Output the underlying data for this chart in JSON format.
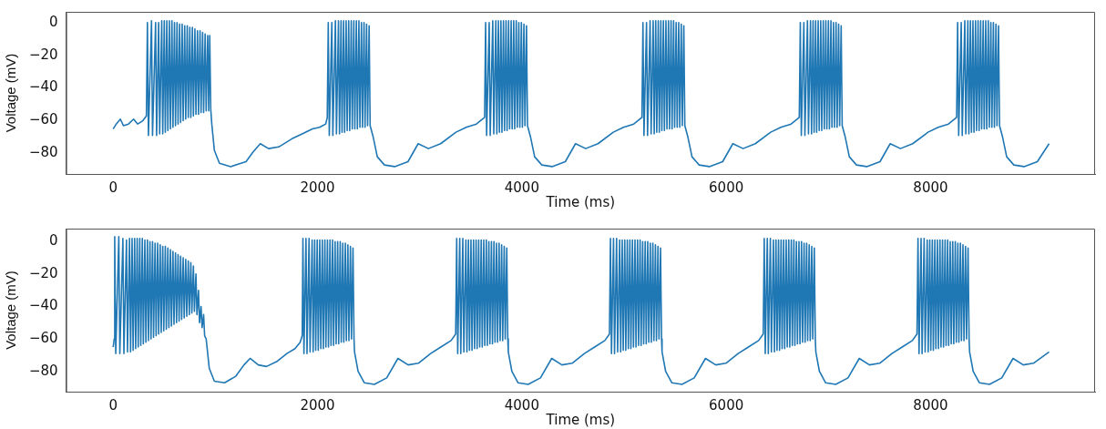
{
  "chart_data": [
    {
      "type": "line",
      "xlabel": "Time (ms)",
      "ylabel": "Voltage (mV)",
      "xlim": [
        -460,
        9610
      ],
      "xticks": [
        0,
        2000,
        4000,
        6000,
        8000
      ],
      "ylim": [
        -92.5,
        6.5
      ],
      "yticks": [
        -80,
        -60,
        -40,
        -20,
        0
      ],
      "grid": false,
      "series": [
        {
          "color": "#1f77b4",
          "x": [
            0,
            30,
            70,
            100,
            150,
            200,
            240,
            290,
            325,
            335,
            345,
            375,
            385,
            415,
            425,
            445,
            455,
            475,
            485,
            500,
            510,
            525,
            535,
            550,
            560,
            575,
            585,
            600,
            610,
            625,
            635,
            650,
            660,
            675,
            685,
            700,
            710,
            725,
            735,
            750,
            760,
            775,
            785,
            800,
            810,
            825,
            835,
            850,
            860,
            875,
            885,
            900,
            910,
            925,
            935,
            945,
            955,
            965,
            990,
            1040,
            1150,
            1300,
            1370,
            1440,
            1520,
            1620,
            1750,
            1850,
            1950,
            2020,
            2080,
            2095,
            2105,
            2115,
            2140,
            2150,
            2175,
            2185,
            2205,
            2215,
            2230,
            2240,
            2255,
            2265,
            2280,
            2290,
            2305,
            2315,
            2330,
            2340,
            2355,
            2365,
            2380,
            2390,
            2405,
            2415,
            2430,
            2440,
            2455,
            2465,
            2480,
            2490,
            2505,
            2515,
            2545,
            2585,
            2655,
            2755,
            2885,
            2985,
            3085,
            3205,
            3355,
            3455,
            3555,
            3635,
            3645,
            3655,
            3680,
            3690,
            3715,
            3725,
            3745,
            3755,
            3770,
            3780,
            3795,
            3805,
            3820,
            3830,
            3845,
            3855,
            3870,
            3880,
            3895,
            3905,
            3920,
            3930,
            3945,
            3955,
            3970,
            3980,
            3995,
            4005,
            4020,
            4030,
            4045,
            4055,
            4085,
            4125,
            4195,
            4295,
            4425,
            4525,
            4625,
            4745,
            4895,
            4995,
            5095,
            5175,
            5185,
            5195,
            5220,
            5230,
            5255,
            5265,
            5285,
            5295,
            5310,
            5320,
            5335,
            5345,
            5360,
            5370,
            5385,
            5395,
            5410,
            5420,
            5435,
            5445,
            5460,
            5470,
            5485,
            5495,
            5510,
            5520,
            5535,
            5545,
            5560,
            5570,
            5585,
            5595,
            5625,
            5665,
            5735,
            5835,
            5965,
            6065,
            6165,
            6285,
            6435,
            6535,
            6635,
            6715,
            6725,
            6735,
            6760,
            6770,
            6795,
            6805,
            6825,
            6835,
            6850,
            6860,
            6875,
            6885,
            6900,
            6910,
            6925,
            6935,
            6950,
            6960,
            6975,
            6985,
            7000,
            7010,
            7025,
            7035,
            7050,
            7060,
            7075,
            7085,
            7100,
            7110,
            7125,
            7135,
            7165,
            7205,
            7275,
            7375,
            7505,
            7605,
            7705,
            7825,
            7975,
            8075,
            8175,
            8255,
            8265,
            8275,
            8300,
            8310,
            8335,
            8345,
            8365,
            8375,
            8390,
            8400,
            8415,
            8425,
            8440,
            8450,
            8465,
            8475,
            8490,
            8500,
            8515,
            8525,
            8540,
            8550,
            8565,
            8575,
            8590,
            8600,
            8615,
            8625,
            8640,
            8650,
            8665,
            8675,
            8705,
            8745,
            8815,
            8915,
            9045,
            9160
          ],
          "values": [
            -65,
            -62,
            -59,
            -63,
            -62,
            -59,
            -62,
            -60,
            -57,
            0,
            -69,
            1,
            -69,
            0,
            -69,
            0,
            -68,
            1,
            -68,
            1,
            -67,
            1,
            -66,
            1,
            -65,
            1,
            -64,
            0,
            -63,
            0,
            -62,
            -1,
            -61,
            -1,
            -60,
            -2,
            -59,
            -2,
            -58,
            -3,
            -58,
            -3,
            -57,
            -4,
            -56,
            -5,
            -56,
            -5,
            -55,
            -6,
            -55,
            -7,
            -54,
            -8,
            -54,
            -8,
            -53,
            -62,
            -78,
            -86,
            -88,
            -85,
            -79,
            -74,
            -77,
            -76,
            -71,
            -68,
            -65,
            -64,
            -62,
            -58,
            0,
            -69,
            0,
            -69,
            1,
            -68,
            1,
            -68,
            1,
            -67,
            1,
            -67,
            1,
            -66,
            1,
            -66,
            1,
            -65,
            1,
            -65,
            1,
            -65,
            1,
            -64,
            0,
            -64,
            0,
            -64,
            -1,
            -63,
            -2,
            -63,
            -70,
            -82,
            -87,
            -88,
            -85,
            -74,
            -77,
            -74,
            -67,
            -64,
            -62,
            -58,
            0,
            -69,
            0,
            -69,
            1,
            -68,
            1,
            -68,
            1,
            -67,
            1,
            -67,
            1,
            -66,
            1,
            -66,
            1,
            -65,
            1,
            -65,
            1,
            -65,
            1,
            -64,
            0,
            -64,
            0,
            -64,
            -1,
            -63,
            -2,
            -63,
            -70,
            -82,
            -87,
            -88,
            -85,
            -74,
            -77,
            -74,
            -67,
            -64,
            -62,
            -58,
            0,
            -69,
            0,
            -69,
            1,
            -68,
            1,
            -68,
            1,
            -67,
            1,
            -67,
            1,
            -66,
            1,
            -66,
            1,
            -65,
            1,
            -65,
            1,
            -65,
            1,
            -64,
            0,
            -64,
            0,
            -64,
            -1,
            -63,
            -2,
            -63,
            -70,
            -82,
            -87,
            -88,
            -85,
            -74,
            -77,
            -74,
            -67,
            -64,
            -62,
            -58,
            0,
            -69,
            0,
            -69,
            1,
            -68,
            1,
            -68,
            1,
            -67,
            1,
            -67,
            1,
            -66,
            1,
            -66,
            1,
            -65,
            1,
            -65,
            1,
            -65,
            1,
            -64,
            0,
            -64,
            0,
            -64,
            -1,
            -63,
            -2,
            -63,
            -70,
            -82,
            -87,
            -88,
            -85,
            -74,
            -77,
            -74,
            -67,
            -64,
            -62,
            -58,
            0,
            -69,
            0,
            -69,
            1,
            -68,
            1,
            -68,
            1,
            -67,
            1,
            -67,
            1,
            -66,
            1,
            -66,
            1,
            -65,
            1,
            -65,
            1,
            -65,
            1,
            -64,
            0,
            -64,
            0,
            -64,
            -1,
            -63,
            -2,
            -63,
            -70,
            -82,
            -87,
            -88,
            -85,
            -74
          ]
        }
      ]
    },
    {
      "type": "line",
      "xlabel": "Time (ms)",
      "ylabel": "Voltage (mV)",
      "xlim": [
        -460,
        9610
      ],
      "xticks": [
        0,
        2000,
        4000,
        6000,
        8000
      ],
      "ylim": [
        -92.5,
        8
      ],
      "yticks": [
        -80,
        -60,
        -40,
        -20,
        0
      ],
      "grid": false,
      "series": [
        {
          "color": "#1f77b4",
          "x": [
            0,
            10,
            15,
            25,
            55,
            65,
            95,
            105,
            130,
            140,
            160,
            170,
            185,
            195,
            210,
            220,
            235,
            245,
            260,
            270,
            285,
            295,
            310,
            320,
            335,
            345,
            360,
            370,
            385,
            395,
            410,
            420,
            435,
            445,
            460,
            470,
            485,
            495,
            510,
            520,
            535,
            545,
            560,
            570,
            585,
            595,
            610,
            620,
            635,
            645,
            660,
            670,
            685,
            695,
            710,
            720,
            735,
            745,
            760,
            770,
            785,
            795,
            810,
            820,
            835,
            845,
            860,
            870,
            885,
            895,
            910,
            940,
            990,
            1090,
            1200,
            1280,
            1340,
            1420,
            1500,
            1600,
            1700,
            1780,
            1830,
            1850,
            1857,
            1867,
            1887,
            1897,
            1917,
            1927,
            1947,
            1957,
            1972,
            1982,
            1997,
            2007,
            2022,
            2032,
            2047,
            2057,
            2072,
            2082,
            2097,
            2107,
            2122,
            2132,
            2147,
            2157,
            2172,
            2182,
            2197,
            2207,
            2222,
            2232,
            2247,
            2257,
            2272,
            2282,
            2297,
            2307,
            2322,
            2332,
            2347,
            2357,
            2362,
            2397,
            2457,
            2557,
            2677,
            2787,
            2887,
            2987,
            3107,
            3207,
            3307,
            3352,
            3362,
            3372,
            3392,
            3402,
            3422,
            3432,
            3452,
            3462,
            3477,
            3487,
            3502,
            3512,
            3527,
            3537,
            3552,
            3562,
            3577,
            3587,
            3602,
            3612,
            3627,
            3637,
            3652,
            3662,
            3677,
            3687,
            3702,
            3712,
            3727,
            3737,
            3752,
            3762,
            3777,
            3787,
            3802,
            3812,
            3827,
            3837,
            3852,
            3862,
            3867,
            3902,
            3962,
            4062,
            4182,
            4292,
            4392,
            4492,
            4612,
            4712,
            4812,
            4857,
            4867,
            4877,
            4897,
            4907,
            4927,
            4937,
            4957,
            4967,
            4982,
            4992,
            5007,
            5017,
            5032,
            5042,
            5057,
            5067,
            5082,
            5092,
            5107,
            5117,
            5132,
            5142,
            5157,
            5167,
            5182,
            5192,
            5207,
            5217,
            5232,
            5242,
            5257,
            5267,
            5282,
            5292,
            5307,
            5317,
            5332,
            5342,
            5357,
            5367,
            5372,
            5407,
            5467,
            5567,
            5687,
            5797,
            5897,
            5997,
            6117,
            6217,
            6317,
            6362,
            6372,
            6382,
            6402,
            6412,
            6432,
            6442,
            6462,
            6472,
            6487,
            6497,
            6512,
            6522,
            6537,
            6547,
            6562,
            6572,
            6587,
            6597,
            6612,
            6622,
            6637,
            6647,
            6662,
            6672,
            6687,
            6697,
            6712,
            6722,
            6737,
            6747,
            6762,
            6772,
            6787,
            6797,
            6812,
            6822,
            6837,
            6847,
            6862,
            6872,
            6877,
            6912,
            6972,
            7072,
            7192,
            7302,
            7402,
            7502,
            7622,
            7722,
            7822,
            7867,
            7877,
            7887,
            7907,
            7917,
            7937,
            7947,
            7967,
            7977,
            7992,
            8002,
            8017,
            8027,
            8042,
            8052,
            8067,
            8077,
            8092,
            8102,
            8117,
            8127,
            8142,
            8152,
            8167,
            8177,
            8192,
            8202,
            8217,
            8227,
            8242,
            8252,
            8267,
            8277,
            8292,
            8302,
            8317,
            8327,
            8342,
            8352,
            8367,
            8377,
            8382,
            8417,
            8477,
            8577,
            8697,
            8807,
            8907,
            9007,
            9160
          ],
          "values": [
            -65,
            -60,
            3,
            -69,
            3,
            -69,
            2,
            -69,
            1,
            -68,
            2,
            -68,
            2,
            -67,
            2,
            -66,
            2,
            -65,
            2,
            -64,
            2,
            -63,
            1,
            -62,
            1,
            -61,
            0,
            -60,
            0,
            -59,
            -1,
            -58,
            -1,
            -57,
            -2,
            -56,
            -3,
            -55,
            -3,
            -54,
            -4,
            -53,
            -5,
            -52,
            -6,
            -51,
            -7,
            -50,
            -8,
            -49,
            -9,
            -48,
            -10,
            -47,
            -11,
            -46,
            -12,
            -45,
            -13,
            -44,
            -15,
            -43,
            -20,
            -45,
            -30,
            -50,
            -40,
            -53,
            -45,
            -58,
            -60,
            -78,
            -86,
            -87,
            -83,
            -76,
            -72,
            -76,
            -77,
            -74,
            -69,
            -66,
            -62,
            -58,
            2,
            -69,
            2,
            -69,
            2,
            -68,
            1,
            -68,
            1,
            -67,
            1,
            -67,
            1,
            -66,
            1,
            -66,
            1,
            -65,
            1,
            -65,
            1,
            -64,
            1,
            -64,
            0,
            -63,
            0,
            -63,
            0,
            -62,
            -1,
            -62,
            -1,
            -61,
            -2,
            -61,
            -3,
            -60,
            -4,
            -60,
            -68,
            -80,
            -87,
            -88,
            -84,
            -72,
            -76,
            -75,
            -69,
            -65,
            -61,
            -57,
            2,
            -69,
            2,
            -69,
            2,
            -68,
            1,
            -68,
            1,
            -67,
            1,
            -67,
            1,
            -66,
            1,
            -66,
            1,
            -65,
            1,
            -65,
            1,
            -64,
            1,
            -64,
            0,
            -63,
            0,
            -63,
            0,
            -62,
            -1,
            -62,
            -1,
            -61,
            -2,
            -61,
            -3,
            -60,
            -4,
            -60,
            -68,
            -80,
            -87,
            -88,
            -84,
            -72,
            -76,
            -75,
            -69,
            -65,
            -61,
            -57,
            2,
            -69,
            2,
            -69,
            2,
            -68,
            1,
            -68,
            1,
            -67,
            1,
            -67,
            1,
            -66,
            1,
            -66,
            1,
            -65,
            1,
            -65,
            1,
            -64,
            1,
            -64,
            0,
            -63,
            0,
            -63,
            0,
            -62,
            -1,
            -62,
            -1,
            -61,
            -2,
            -61,
            -3,
            -60,
            -4,
            -60,
            -68,
            -80,
            -87,
            -88,
            -84,
            -72,
            -76,
            -75,
            -69,
            -65,
            -61,
            -57,
            2,
            -69,
            2,
            -69,
            2,
            -68,
            1,
            -68,
            1,
            -67,
            1,
            -67,
            1,
            -66,
            1,
            -66,
            1,
            -65,
            1,
            -65,
            1,
            -64,
            1,
            -64,
            0,
            -63,
            0,
            -63,
            0,
            -62,
            -1,
            -62,
            -1,
            -61,
            -2,
            -61,
            -3,
            -60,
            -4,
            -60,
            -68,
            -80,
            -87,
            -88,
            -84,
            -72,
            -76,
            -75,
            -69,
            -65,
            -61,
            -57,
            2,
            -69,
            2,
            -69,
            2,
            -68,
            1,
            -68,
            1,
            -67,
            1,
            -67,
            1,
            -66,
            1,
            -66,
            1,
            -65,
            1,
            -65,
            1,
            -64,
            1,
            -64,
            0,
            -63,
            0,
            -63,
            0,
            -62,
            -1,
            -62,
            -1,
            -61,
            -2,
            -61,
            -3,
            -60,
            -4,
            -60,
            -68,
            -80,
            -87,
            -88,
            -84,
            -72,
            -76,
            -75,
            -68
          ]
        }
      ]
    }
  ]
}
